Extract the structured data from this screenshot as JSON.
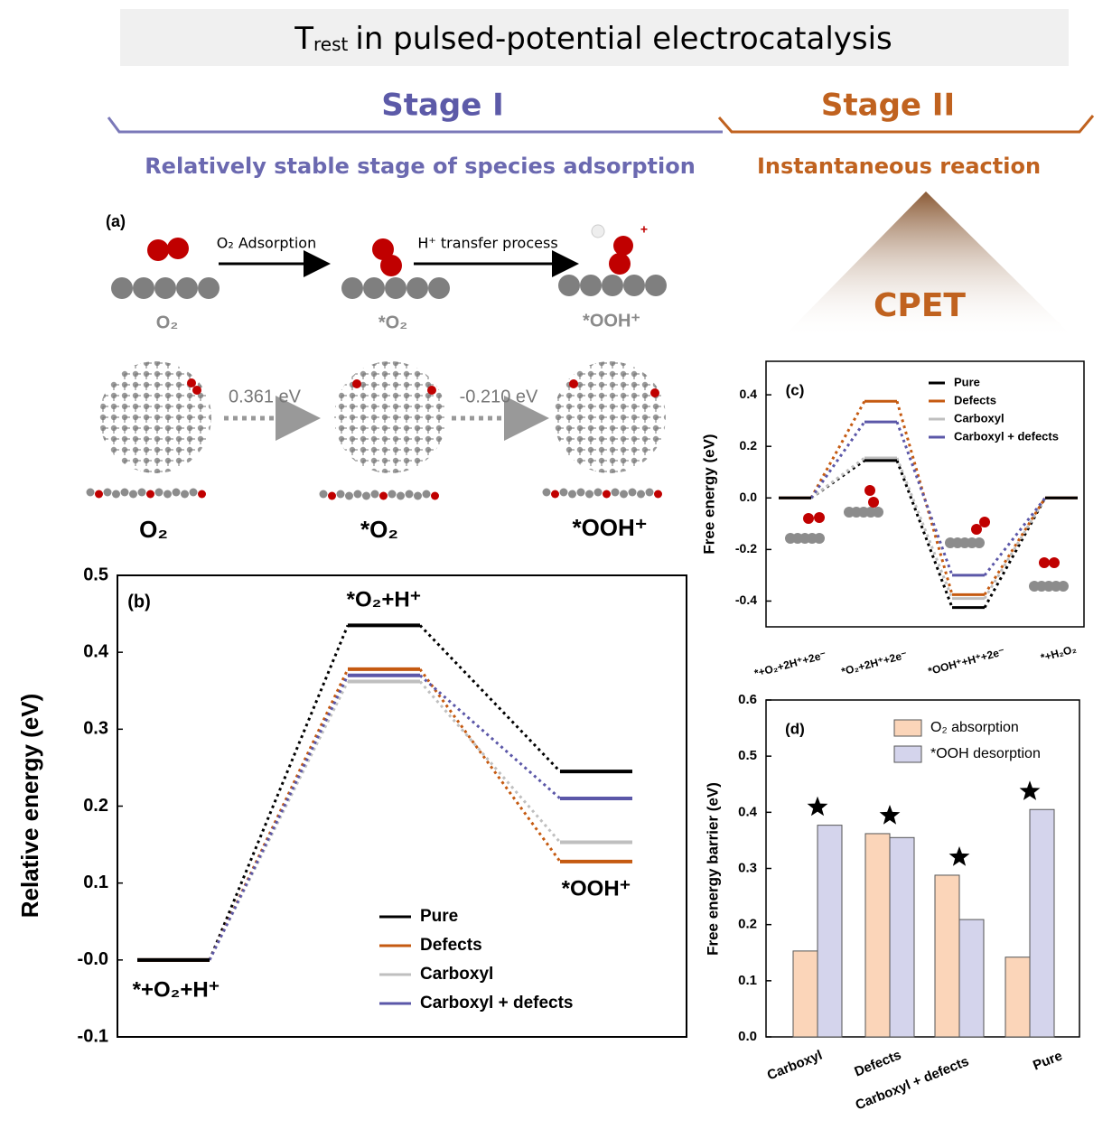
{
  "header": {
    "title": {
      "main": "T",
      "sub": "rest",
      "rest": "in pulsed-potential electrocatalysis"
    },
    "stage_1": "Stage I",
    "stage_2": "Stage II",
    "stage_1_desc": "Relatively stable stage of species adsorption",
    "stage_2_desc": "Instantaneous reaction",
    "cpet": "CPET"
  },
  "panel_a": {
    "label": "(a)",
    "arrows": [
      "O₂ Adsorption",
      "H⁺ transfer process"
    ],
    "states": [
      "O₂",
      "*O₂",
      "*OOH⁺"
    ],
    "energies": [
      "0.361 eV",
      "-0.210 eV"
    ],
    "structure_labels": [
      "O₂",
      "*O₂",
      "*OOH⁺"
    ]
  },
  "chart_data": [
    {
      "type": "level",
      "panel_label": "(b)",
      "y_label": "Relative energy (eV)",
      "categories": [
        "*+O₂+H⁺",
        "*O₂+H⁺",
        "*OOH⁺"
      ],
      "series": [
        {
          "name": "Pure",
          "color": "#000000",
          "values": [
            0,
            0.435,
            0.245
          ]
        },
        {
          "name": "Defects",
          "color": "#c55a11",
          "values": [
            0,
            0.378,
            0.128
          ]
        },
        {
          "name": "Carboxyl",
          "color": "#bfbfbf",
          "values": [
            0,
            0.362,
            0.153
          ]
        },
        {
          "name": "Carboxyl + defects",
          "color": "#5b57a8",
          "values": [
            0,
            0.37,
            0.21
          ]
        }
      ],
      "ylim": [
        -0.1,
        0.5
      ],
      "yticks": [
        -0.1,
        {
          "value": 0,
          "label": "-0.0"
        },
        0.1,
        0.2,
        0.3,
        0.4,
        0.5
      ]
    },
    {
      "type": "level",
      "panel_label": "(c)",
      "y_label": "Free energy (eV)",
      "categories": [
        "*+O₂+2H⁺+2e⁻",
        "*O₂+2H⁺+2e⁻",
        "*OOH⁺+H⁺+2e⁻",
        "*+H₂O₂"
      ],
      "series": [
        {
          "name": "Pure",
          "color": "#000000",
          "values": [
            0,
            0.145,
            -0.425,
            0
          ]
        },
        {
          "name": "Defects",
          "color": "#c55a11",
          "values": [
            0,
            0.375,
            -0.375,
            0
          ]
        },
        {
          "name": "Carboxyl",
          "color": "#bfbfbf",
          "values": [
            0,
            0.155,
            -0.39,
            0
          ]
        },
        {
          "name": "Carboxyl + defects",
          "color": "#5b57a8",
          "values": [
            0,
            0.295,
            -0.3,
            0
          ]
        }
      ],
      "ylim": [
        -0.5,
        0.53
      ],
      "yticks": [
        -0.4,
        -0.2,
        {
          "value": 0,
          "label": "0.0"
        },
        0.2,
        0.4
      ]
    },
    {
      "type": "bar",
      "panel_label": "(d)",
      "y_label": "Free energy barrier (eV)",
      "categories": [
        "Carboxyl",
        "Defects",
        "Carboxyl + defects",
        "Pure"
      ],
      "series": [
        {
          "name": "O₂ absorption",
          "color": "#fbd5b9",
          "values": [
            0.153,
            0.362,
            0.288,
            0.142
          ]
        },
        {
          "name": "*OOH desorption",
          "color": "#d4d4ec",
          "values": [
            0.377,
            0.355,
            0.209,
            0.405
          ]
        }
      ],
      "ylim": [
        0,
        0.6
      ],
      "yticks": [
        {
          "value": 0,
          "label": "0.0"
        },
        0.1,
        0.2,
        0.3,
        0.4,
        0.5,
        0.6
      ]
    }
  ]
}
